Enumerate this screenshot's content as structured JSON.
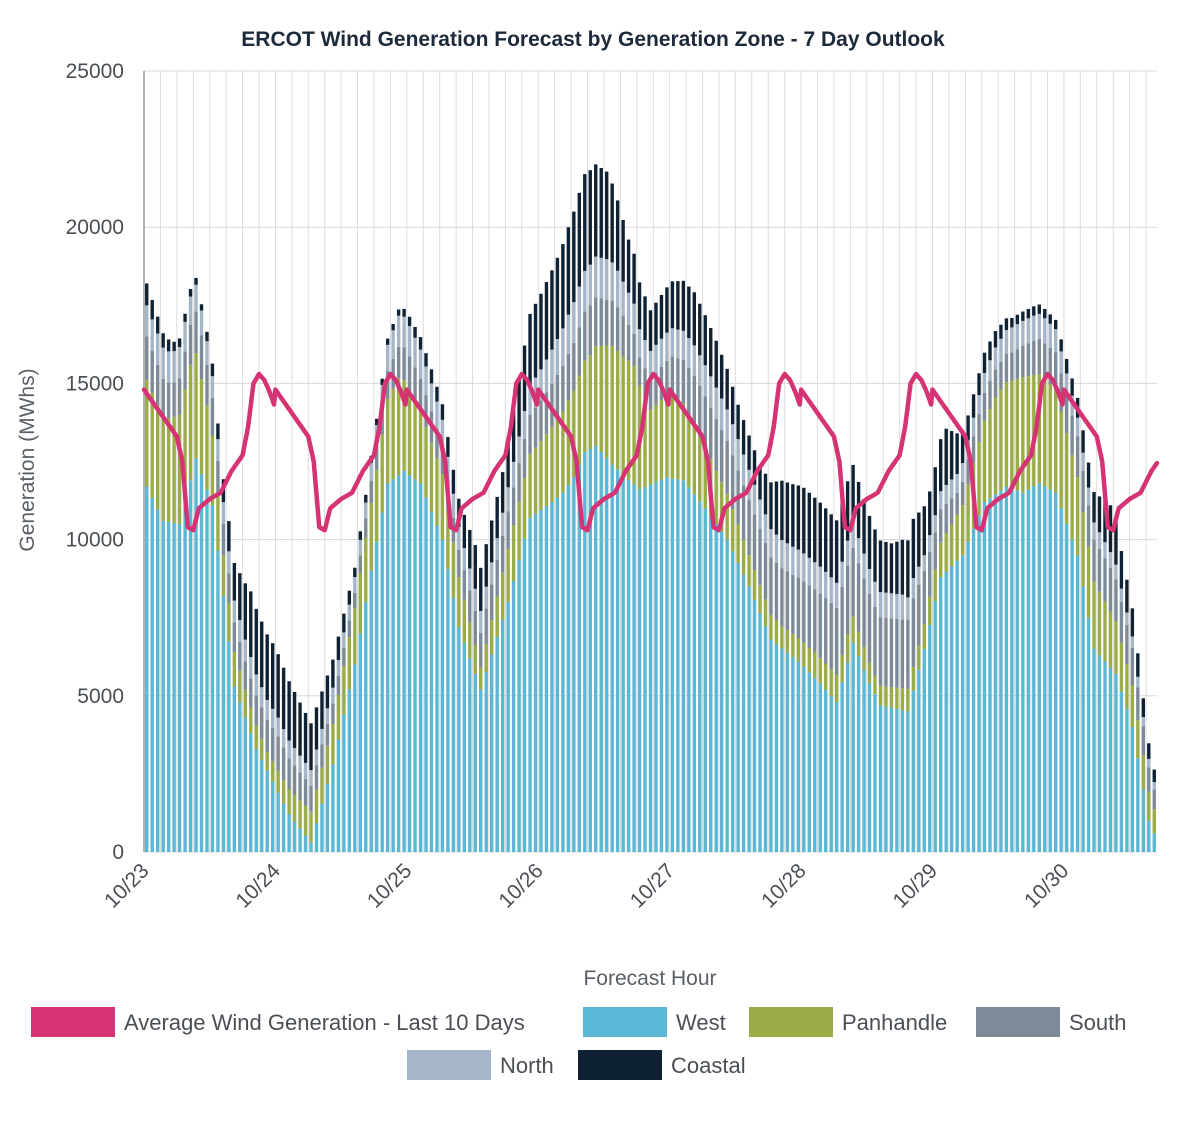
{
  "chart_data": {
    "type": "bar",
    "stacked": true,
    "title": "ERCOT Wind Generation Forecast by Generation Zone - 7 Day Outlook",
    "xlabel": "Forecast Hour",
    "ylabel": "Generation (MWhs)",
    "ylim": [
      0,
      25000
    ],
    "yticks": [
      0,
      5000,
      10000,
      15000,
      20000,
      25000
    ],
    "grid": true,
    "legend_position": "bottom",
    "date_labels": [
      "10/23",
      "10/24",
      "10/25",
      "10/26",
      "10/27",
      "10/28",
      "10/29",
      "10/30"
    ],
    "hours_per_day": 24,
    "total_hours": 185,
    "series": [
      {
        "name": "West",
        "color": "#5ab8d4",
        "anchors": [
          [
            0,
            11700
          ],
          [
            3,
            10600
          ],
          [
            6,
            10500
          ],
          [
            9,
            12600
          ],
          [
            12,
            11100
          ],
          [
            16,
            5300
          ],
          [
            20,
            3300
          ],
          [
            26,
            1200
          ],
          [
            30,
            300
          ],
          [
            34,
            2800
          ],
          [
            38,
            6000
          ],
          [
            41,
            9000
          ],
          [
            44,
            11800
          ],
          [
            47,
            12200
          ],
          [
            50,
            11800
          ],
          [
            54,
            10000
          ],
          [
            57,
            7200
          ],
          [
            61,
            5200
          ],
          [
            66,
            8000
          ],
          [
            70,
            10700
          ],
          [
            74,
            11200
          ],
          [
            76,
            11500
          ],
          [
            78,
            12000
          ],
          [
            80,
            12800
          ],
          [
            82,
            13000
          ],
          [
            85,
            12400
          ],
          [
            90,
            11600
          ],
          [
            95,
            12000
          ],
          [
            98,
            11900
          ],
          [
            102,
            11000
          ],
          [
            106,
            10000
          ],
          [
            110,
            8500
          ],
          [
            114,
            6800
          ],
          [
            119,
            6100
          ],
          [
            123,
            5400
          ],
          [
            126,
            4800
          ],
          [
            129,
            6700
          ],
          [
            132,
            5400
          ],
          [
            134,
            4700
          ],
          [
            139,
            4500
          ],
          [
            142,
            6500
          ],
          [
            145,
            8800
          ],
          [
            149,
            9500
          ],
          [
            153,
            11200
          ],
          [
            157,
            11700
          ],
          [
            160,
            11500
          ],
          [
            163,
            11800
          ],
          [
            166,
            11500
          ],
          [
            170,
            9500
          ],
          [
            173,
            6500
          ],
          [
            177,
            5700
          ],
          [
            180,
            4000
          ],
          [
            183,
            1000
          ],
          [
            185,
            200
          ]
        ]
      },
      {
        "name": "Panhandle",
        "color": "#9aac46",
        "anchors": [
          [
            0,
            3400
          ],
          [
            4,
            3300
          ],
          [
            8,
            3700
          ],
          [
            11,
            2700
          ],
          [
            14,
            1300
          ],
          [
            18,
            900
          ],
          [
            22,
            600
          ],
          [
            30,
            1000
          ],
          [
            34,
            1300
          ],
          [
            38,
            1800
          ],
          [
            42,
            2300
          ],
          [
            46,
            3100
          ],
          [
            50,
            2300
          ],
          [
            54,
            2100
          ],
          [
            57,
            1600
          ],
          [
            61,
            700
          ],
          [
            66,
            1700
          ],
          [
            72,
            2200
          ],
          [
            77,
            2700
          ],
          [
            81,
            3000
          ],
          [
            85,
            3800
          ],
          [
            89,
            3800
          ],
          [
            92,
            2400
          ],
          [
            96,
            2700
          ],
          [
            100,
            2200
          ],
          [
            104,
            1700
          ],
          [
            110,
            1000
          ],
          [
            116,
            700
          ],
          [
            122,
            800
          ],
          [
            128,
            900
          ],
          [
            133,
            600
          ],
          [
            138,
            700
          ],
          [
            142,
            800
          ],
          [
            145,
            1100
          ],
          [
            149,
            1600
          ],
          [
            155,
            3100
          ],
          [
            160,
            3700
          ],
          [
            163,
            3500
          ],
          [
            166,
            3300
          ],
          [
            170,
            2500
          ],
          [
            176,
            1800
          ],
          [
            182,
            1100
          ],
          [
            185,
            600
          ]
        ]
      },
      {
        "name": "South",
        "color": "#7d8b99",
        "anchors": [
          [
            0,
            1400
          ],
          [
            5,
            1100
          ],
          [
            10,
            1400
          ],
          [
            14,
            1000
          ],
          [
            18,
            900
          ],
          [
            24,
            1100
          ],
          [
            28,
            900
          ],
          [
            33,
            700
          ],
          [
            38,
            500
          ],
          [
            44,
            900
          ],
          [
            48,
            1100
          ],
          [
            52,
            1000
          ],
          [
            56,
            800
          ],
          [
            60,
            1100
          ],
          [
            66,
            1200
          ],
          [
            72,
            1300
          ],
          [
            77,
            1500
          ],
          [
            81,
            1600
          ],
          [
            86,
            1400
          ],
          [
            90,
            900
          ],
          [
            95,
            1100
          ],
          [
            100,
            1600
          ],
          [
            106,
            1700
          ],
          [
            112,
            1800
          ],
          [
            118,
            1900
          ],
          [
            124,
            2100
          ],
          [
            128,
            2200
          ],
          [
            134,
            2200
          ],
          [
            140,
            2200
          ],
          [
            144,
            1200
          ],
          [
            148,
            700
          ],
          [
            152,
            900
          ],
          [
            158,
            900
          ],
          [
            162,
            1100
          ],
          [
            166,
            1200
          ],
          [
            170,
            1300
          ],
          [
            176,
            1400
          ],
          [
            180,
            1200
          ],
          [
            185,
            500
          ]
        ]
      },
      {
        "name": "North",
        "color": "#a5b6c8",
        "anchors": [
          [
            0,
            1000
          ],
          [
            6,
            1000
          ],
          [
            12,
            700
          ],
          [
            18,
            700
          ],
          [
            24,
            600
          ],
          [
            30,
            500
          ],
          [
            36,
            500
          ],
          [
            40,
            500
          ],
          [
            46,
            1000
          ],
          [
            52,
            900
          ],
          [
            58,
            700
          ],
          [
            64,
            700
          ],
          [
            72,
            1000
          ],
          [
            78,
            1300
          ],
          [
            84,
            1300
          ],
          [
            90,
            900
          ],
          [
            96,
            900
          ],
          [
            102,
            1000
          ],
          [
            108,
            1000
          ],
          [
            114,
            900
          ],
          [
            120,
            900
          ],
          [
            126,
            800
          ],
          [
            132,
            800
          ],
          [
            138,
            800
          ],
          [
            142,
            500
          ],
          [
            146,
            600
          ],
          [
            152,
            600
          ],
          [
            158,
            800
          ],
          [
            164,
            800
          ],
          [
            170,
            600
          ],
          [
            176,
            500
          ],
          [
            182,
            300
          ],
          [
            185,
            200
          ]
        ]
      },
      {
        "name": "Coastal",
        "color": "#0f2233",
        "anchors": [
          [
            0,
            700
          ],
          [
            5,
            300
          ],
          [
            10,
            200
          ],
          [
            13,
            500
          ],
          [
            16,
            1200
          ],
          [
            19,
            2100
          ],
          [
            23,
            2100
          ],
          [
            26,
            1900
          ],
          [
            30,
            1500
          ],
          [
            34,
            900
          ],
          [
            38,
            300
          ],
          [
            42,
            200
          ],
          [
            46,
            200
          ],
          [
            50,
            400
          ],
          [
            54,
            500
          ],
          [
            57,
            900
          ],
          [
            60,
            1400
          ],
          [
            65,
            1300
          ],
          [
            70,
            2300
          ],
          [
            75,
            2600
          ],
          [
            80,
            3100
          ],
          [
            84,
            2800
          ],
          [
            88,
            1700
          ],
          [
            92,
            1300
          ],
          [
            96,
            1500
          ],
          [
            100,
            1700
          ],
          [
            104,
            1500
          ],
          [
            108,
            1100
          ],
          [
            112,
            1100
          ],
          [
            116,
            1900
          ],
          [
            120,
            2100
          ],
          [
            126,
            2000
          ],
          [
            132,
            1700
          ],
          [
            136,
            1600
          ],
          [
            140,
            1900
          ],
          [
            143,
            1400
          ],
          [
            146,
            1800
          ],
          [
            150,
            800
          ],
          [
            154,
            600
          ],
          [
            158,
            300
          ],
          [
            166,
            300
          ],
          [
            172,
            800
          ],
          [
            176,
            1500
          ],
          [
            182,
            600
          ],
          [
            185,
            300
          ]
        ]
      }
    ],
    "lines": [
      {
        "name": "Average Wind Generation - Last 10 Days",
        "color": "#d53373",
        "period": 24,
        "anchors": [
          [
            0,
            14800
          ],
          [
            2,
            14300
          ],
          [
            4,
            13800
          ],
          [
            6,
            13300
          ],
          [
            7,
            12500
          ],
          [
            8,
            10400
          ],
          [
            9,
            10300
          ],
          [
            10,
            11000
          ],
          [
            12,
            11300
          ],
          [
            14,
            11500
          ],
          [
            16,
            12200
          ],
          [
            18,
            12700
          ],
          [
            19,
            13600
          ],
          [
            20,
            15000
          ],
          [
            21,
            15300
          ],
          [
            22,
            15100
          ],
          [
            23,
            14700
          ],
          [
            24,
            14200
          ]
        ]
      }
    ]
  },
  "legend": {
    "average_label": "Average Wind Generation - Last 10 Days",
    "west_label": "West",
    "panhandle_label": "Panhandle",
    "south_label": "South",
    "north_label": "North",
    "coastal_label": "Coastal"
  }
}
